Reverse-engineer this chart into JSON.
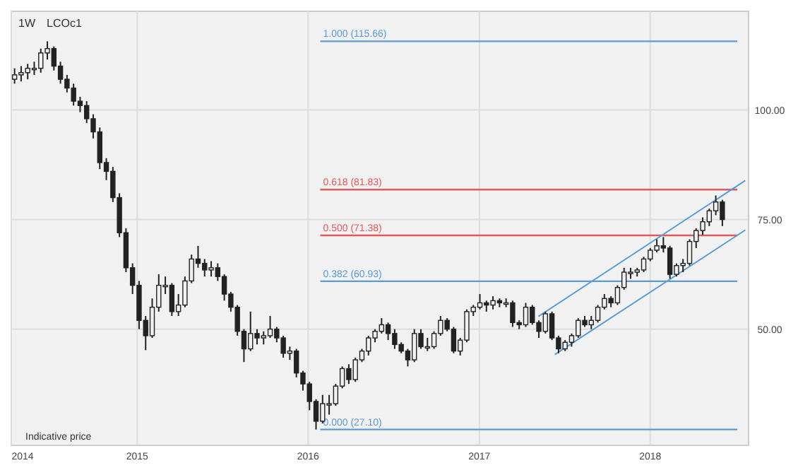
{
  "chart_data": {
    "type": "candlestick",
    "title": "LCOc1",
    "subtitle": "1W",
    "annotations": [
      "Indicative price"
    ],
    "xlim": [
      "2014-04-07",
      "2018-07-30"
    ],
    "ylim": [
      23.5,
      122.5
    ],
    "xticks": [
      {
        "value": "2014-04-07",
        "label": "2014"
      },
      {
        "value": "2015-01-01",
        "label": "2015"
      },
      {
        "value": "2016-01-01",
        "label": "2016"
      },
      {
        "value": "2017-01-01",
        "label": "2017"
      },
      {
        "value": "2018-01-01",
        "label": "2018"
      }
    ],
    "yticks": [
      {
        "value": 50,
        "label": "50.00"
      },
      {
        "value": 75,
        "label": "75.00"
      },
      {
        "value": 100,
        "label": "100.00"
      }
    ],
    "grid": true,
    "ref_lines": [
      {
        "axis": "y",
        "value": 115.66,
        "label": "1.000 (115.66)",
        "color": "#5b9bd5"
      },
      {
        "axis": "y",
        "value": 81.83,
        "label": "0.618 (81.83)",
        "color": "#e05a5a"
      },
      {
        "axis": "y",
        "value": 71.38,
        "label": "0.500 (71.38)",
        "color": "#e05a5a"
      },
      {
        "axis": "y",
        "value": 60.93,
        "label": "0.382 (60.93)",
        "color": "#5b9bd5"
      },
      {
        "axis": "y",
        "value": 27.1,
        "label": "0.000 (27.10)",
        "color": "#5b9bd5"
      }
    ],
    "series": [
      {
        "color": "#222222",
        "x": [
          "2014-04-14",
          "2014-04-28",
          "2014-05-12",
          "2014-05-26",
          "2014-06-09",
          "2014-06-23",
          "2014-07-07",
          "2014-07-21",
          "2014-08-04",
          "2014-08-18",
          "2014-09-01",
          "2014-09-15",
          "2014-09-29",
          "2014-10-13",
          "2014-10-27",
          "2014-11-10",
          "2014-11-24",
          "2014-12-08",
          "2014-12-22",
          "2015-01-05",
          "2015-01-19",
          "2015-02-02",
          "2015-02-16",
          "2015-03-02",
          "2015-03-16",
          "2015-03-30",
          "2015-04-13",
          "2015-04-27",
          "2015-05-11",
          "2015-05-25",
          "2015-06-08",
          "2015-06-22",
          "2015-07-06",
          "2015-07-20",
          "2015-08-03",
          "2015-08-17",
          "2015-08-31",
          "2015-09-14",
          "2015-09-28",
          "2015-10-12",
          "2015-10-26",
          "2015-11-09",
          "2015-11-23",
          "2015-12-07",
          "2015-12-21",
          "2016-01-04",
          "2016-01-18",
          "2016-02-01",
          "2016-02-15",
          "2016-02-29",
          "2016-03-14",
          "2016-03-28",
          "2016-04-11",
          "2016-04-25",
          "2016-05-09",
          "2016-05-23",
          "2016-06-06",
          "2016-06-20",
          "2016-07-04",
          "2016-07-18",
          "2016-08-01",
          "2016-08-15",
          "2016-08-29",
          "2016-09-12",
          "2016-09-26",
          "2016-10-10",
          "2016-10-24",
          "2016-11-07",
          "2016-11-21",
          "2016-12-05",
          "2016-12-19",
          "2017-01-02",
          "2017-01-16",
          "2017-01-30",
          "2017-02-13",
          "2017-02-27",
          "2017-03-13",
          "2017-03-27",
          "2017-04-10",
          "2017-04-24",
          "2017-05-08",
          "2017-05-22",
          "2017-06-05",
          "2017-06-19",
          "2017-07-03",
          "2017-07-17",
          "2017-07-31",
          "2017-08-14",
          "2017-08-28",
          "2017-09-11",
          "2017-09-25",
          "2017-10-09",
          "2017-10-23",
          "2017-11-06",
          "2017-11-20",
          "2017-12-04",
          "2017-12-18",
          "2018-01-01",
          "2018-01-15",
          "2018-01-29",
          "2018-02-12",
          "2018-02-26",
          "2018-03-12",
          "2018-03-26",
          "2018-04-09",
          "2018-04-23",
          "2018-05-07",
          "2018-05-21",
          "2018-06-04"
        ],
        "ohlc": [
          [
            107,
            109.5,
            106,
            108
          ],
          [
            108,
            110,
            106.5,
            108.5
          ],
          [
            108.5,
            110.5,
            107,
            109.5
          ],
          [
            109.5,
            111,
            108,
            109.5
          ],
          [
            109.5,
            114,
            108.5,
            113
          ],
          [
            113,
            115.66,
            111.5,
            114
          ],
          [
            114,
            114.5,
            109,
            110
          ],
          [
            110,
            111,
            106,
            107
          ],
          [
            107,
            108,
            104,
            105
          ],
          [
            105,
            106,
            101,
            102
          ],
          [
            102,
            103,
            99.5,
            101
          ],
          [
            101,
            102,
            97,
            98
          ],
          [
            98,
            99,
            93.5,
            95
          ],
          [
            95,
            96,
            86.5,
            88
          ],
          [
            88,
            89,
            84,
            86
          ],
          [
            86,
            87,
            79,
            80
          ],
          [
            80,
            81,
            71,
            72
          ],
          [
            72,
            73,
            63,
            64
          ],
          [
            64,
            65,
            58,
            60
          ],
          [
            60,
            61,
            50,
            52
          ],
          [
            52,
            53,
            45.2,
            48.5
          ],
          [
            48.5,
            57,
            48,
            55
          ],
          [
            55,
            62.5,
            54,
            60
          ],
          [
            60,
            62,
            58,
            60
          ],
          [
            60,
            60.5,
            53,
            54
          ],
          [
            54,
            58,
            53,
            55.5
          ],
          [
            55.5,
            62,
            55,
            61
          ],
          [
            61,
            67,
            60.5,
            66
          ],
          [
            66,
            69,
            64,
            65
          ],
          [
            65,
            66,
            62,
            63.5
          ],
          [
            63.5,
            65.5,
            62,
            64
          ],
          [
            64,
            65,
            61,
            62
          ],
          [
            62,
            62.5,
            56.5,
            58
          ],
          [
            58,
            58.5,
            54,
            55
          ],
          [
            55,
            55.5,
            48.5,
            49.5
          ],
          [
            49.5,
            50,
            42.5,
            45.5
          ],
          [
            45.5,
            54,
            45,
            49
          ],
          [
            49,
            50,
            46.5,
            48
          ],
          [
            48,
            49.5,
            46.5,
            48.5
          ],
          [
            48.5,
            53,
            48,
            50
          ],
          [
            50,
            50.5,
            47,
            48
          ],
          [
            48,
            48.5,
            43.5,
            44.5
          ],
          [
            44.5,
            46,
            43,
            45
          ],
          [
            45,
            45.5,
            39,
            40
          ],
          [
            40,
            40.5,
            36,
            37.5
          ],
          [
            37.5,
            38,
            31.5,
            33.5
          ],
          [
            33.5,
            34,
            27.1,
            29
          ],
          [
            29,
            35,
            28.5,
            33
          ],
          [
            33,
            35,
            30.5,
            33
          ],
          [
            33,
            37.5,
            32.5,
            37
          ],
          [
            37,
            41.5,
            36.5,
            41
          ],
          [
            41,
            42,
            37.5,
            38.5
          ],
          [
            38.5,
            43.5,
            38,
            43
          ],
          [
            43,
            45.5,
            42.5,
            45
          ],
          [
            45,
            48.5,
            44,
            48
          ],
          [
            48,
            50,
            47,
            49.5
          ],
          [
            49.5,
            52.5,
            49,
            51
          ],
          [
            51,
            51.5,
            47.5,
            49
          ],
          [
            49,
            50,
            45.5,
            46.5
          ],
          [
            46.5,
            47,
            44.5,
            45
          ],
          [
            45,
            45.5,
            41.5,
            43
          ],
          [
            43,
            50,
            42.5,
            49
          ],
          [
            49,
            50,
            45.5,
            46
          ],
          [
            46,
            48,
            45,
            46
          ],
          [
            46,
            49.5,
            45.5,
            49
          ],
          [
            49,
            53,
            48.5,
            52
          ],
          [
            52,
            52.5,
            49.5,
            50
          ],
          [
            50,
            50.5,
            44.5,
            45
          ],
          [
            45,
            48,
            44,
            47.5
          ],
          [
            47.5,
            54.5,
            47,
            54
          ],
          [
            54,
            55.5,
            53,
            55
          ],
          [
            55,
            58,
            54.5,
            56
          ],
          [
            56,
            56.5,
            54,
            55.5
          ],
          [
            55.5,
            57.5,
            54.5,
            56.5
          ],
          [
            56.5,
            57,
            55,
            56
          ],
          [
            56,
            57,
            55,
            56
          ],
          [
            56,
            56.5,
            50.5,
            51.5
          ],
          [
            51.5,
            52,
            50,
            51
          ],
          [
            51,
            56,
            50.5,
            55
          ],
          [
            55,
            55.5,
            51,
            51.5
          ],
          [
            51.5,
            52,
            48,
            49.5
          ],
          [
            49.5,
            54,
            49,
            53.5
          ],
          [
            53.5,
            54,
            47.5,
            48
          ],
          [
            48,
            48.5,
            44.5,
            45.5
          ],
          [
            45.5,
            47.5,
            45,
            47
          ],
          [
            47,
            49,
            46,
            48.5
          ],
          [
            48.5,
            52.5,
            48,
            52
          ],
          [
            52,
            53,
            50.5,
            51
          ],
          [
            51,
            53,
            50,
            52
          ],
          [
            52,
            55.5,
            51.5,
            55
          ],
          [
            55,
            58,
            54.5,
            57
          ],
          [
            57,
            57.5,
            55,
            56
          ],
          [
            56,
            60,
            55.5,
            59.5
          ],
          [
            59.5,
            64,
            59,
            63
          ],
          [
            63,
            64,
            61.5,
            63
          ],
          [
            63,
            64,
            62,
            63.5
          ],
          [
            63.5,
            66.5,
            63,
            66
          ],
          [
            66,
            68.5,
            65.5,
            68
          ],
          [
            68,
            70.5,
            67.5,
            69
          ],
          [
            69,
            71,
            67.5,
            68.5
          ],
          [
            68.5,
            69,
            61.5,
            62.5
          ],
          [
            62.5,
            65,
            62,
            64.5
          ],
          [
            64.5,
            66,
            63,
            65
          ],
          [
            65,
            70.5,
            64.5,
            70
          ],
          [
            70,
            73,
            68.5,
            72.5
          ],
          [
            72.5,
            75.5,
            71.5,
            74.5
          ],
          [
            74.5,
            77.5,
            73.5,
            77
          ],
          [
            77,
            80.5,
            76,
            79
          ],
          [
            79,
            79.5,
            73.5,
            75
          ]
        ]
      },
      {
        "type": "line",
        "color": "#5b9bd5",
        "x": [
          "2017-05-07",
          "2018-07-23"
        ],
        "values": [
          52.9,
          83.9
        ]
      },
      {
        "type": "line",
        "color": "#5b9bd5",
        "x": [
          "2017-06-11",
          "2018-07-23"
        ],
        "values": [
          44.2,
          72.6
        ]
      }
    ]
  }
}
